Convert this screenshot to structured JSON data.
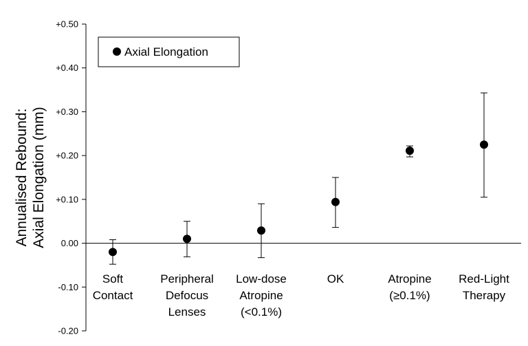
{
  "chart_data": {
    "type": "scatter",
    "title": "",
    "ylabel_lines": [
      "Annualised Rebound:",
      "Axial Elongation (mm)"
    ],
    "xlabel": "",
    "ylim": [
      -0.2,
      0.5
    ],
    "yticks": [
      "+0.50",
      "+0.40",
      "+0.30",
      "+0.20",
      "+0.10",
      "0.00",
      "-0.10",
      "-0.20"
    ],
    "ytick_values": [
      0.5,
      0.4,
      0.3,
      0.2,
      0.1,
      0.0,
      -0.1,
      -0.2
    ],
    "categories": [
      [
        "Soft",
        "Contact"
      ],
      [
        "Peripheral",
        "Defocus",
        "Lenses"
      ],
      [
        "Low-dose",
        "Atropine",
        "(<0.1%)"
      ],
      [
        "OK"
      ],
      [
        "Atropine",
        "(≥0.1%)"
      ],
      [
        "Red-Light",
        "Therapy"
      ]
    ],
    "series": [
      {
        "name": "Axial Elongation",
        "values": [
          -0.02,
          0.01,
          0.029,
          0.094,
          0.211,
          0.225
        ],
        "error_low": [
          -0.048,
          -0.031,
          -0.033,
          0.036,
          0.197,
          0.105
        ],
        "error_high": [
          0.008,
          0.05,
          0.09,
          0.15,
          0.222,
          0.343
        ]
      }
    ],
    "legend_position": "top-left",
    "grid": false,
    "zero_line": true
  }
}
